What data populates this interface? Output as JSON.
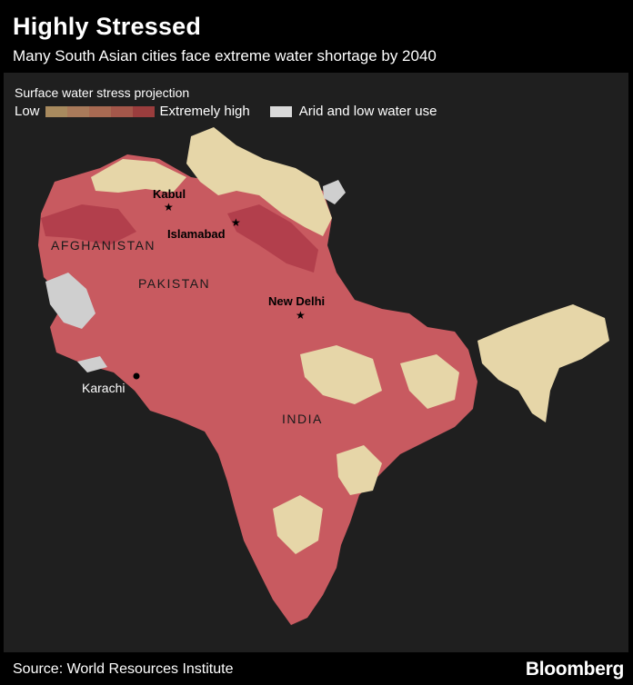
{
  "header": {
    "title": "Highly Stressed",
    "subtitle": "Many South Asian cities face extreme water shortage by 2040"
  },
  "legend": {
    "title": "Surface water stress projection",
    "low_label": "Low",
    "high_label": "Extremely high",
    "arid_label": "Arid and low water use",
    "scale_colors": [
      "#a88a5e",
      "#a97a5a",
      "#a86a52",
      "#a4574a",
      "#9a3d3d",
      "#8c2a30"
    ],
    "arid_color": "#d9d9d9"
  },
  "map": {
    "colors": {
      "low": "#e6d6a8",
      "high": "#c85a60",
      "extreme": "#b23f4c",
      "arid": "#cfcfcf",
      "background": "#1f1f1f"
    },
    "cities": {
      "kabul": "Kabul",
      "islamabad": "Islamabad",
      "new_delhi": "New Delhi",
      "karachi": "Karachi"
    },
    "countries": {
      "afghanistan": "AFGHANISTAN",
      "pakistan": "PAKISTAN",
      "india": "INDIA"
    }
  },
  "footer": {
    "source": "Source: World Resources Institute",
    "brand": "Bloomberg"
  }
}
